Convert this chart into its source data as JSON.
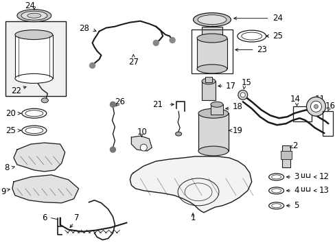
{
  "background_color": "#ffffff",
  "line_color": "#1a1a1a",
  "text_color": "#000000",
  "font_size": 8.5,
  "fig_width": 4.89,
  "fig_height": 3.6,
  "dpi": 100
}
